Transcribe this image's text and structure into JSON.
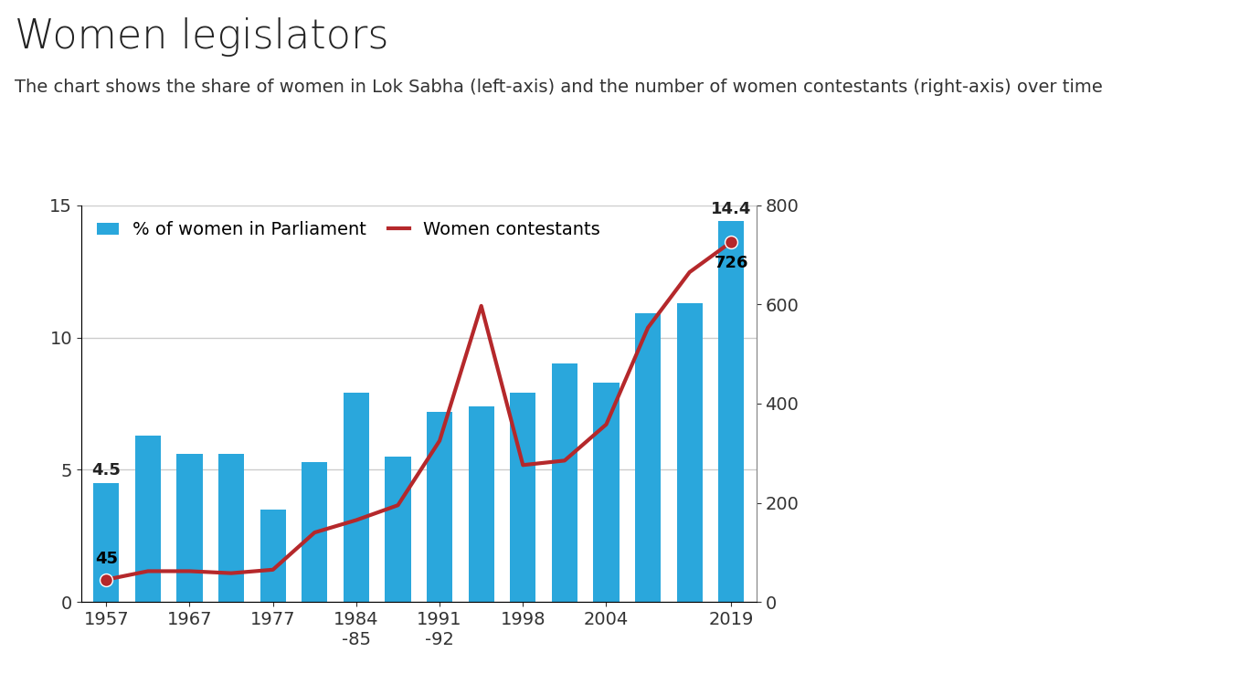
{
  "chart_data": {
    "type": "bar",
    "title": "Women legislators",
    "subtitle": "The chart shows the share of women in Lok Sabha (left-axis) and the number of women contestants (right-axis) over time",
    "categories": [
      "1957",
      null,
      "1967",
      null,
      "1977",
      null,
      "1984\n-85",
      null,
      "1991\n-92",
      null,
      "1998",
      null,
      "2004",
      null,
      null,
      "2019"
    ],
    "series": [
      {
        "name": "% of women in Parliament",
        "type": "bar",
        "color": "#2aa7dc",
        "values": [
          4.5,
          6.3,
          5.6,
          5.6,
          3.5,
          5.3,
          7.9,
          5.5,
          7.2,
          7.4,
          7.9,
          9.0,
          8.3,
          10.9,
          11.3,
          14.4
        ],
        "value_labels": [
          "4.5",
          null,
          null,
          null,
          null,
          null,
          null,
          null,
          null,
          null,
          null,
          null,
          null,
          null,
          null,
          "14.4"
        ]
      },
      {
        "name": "Women contestants",
        "type": "line",
        "axis": "y2",
        "color": "#b5282b",
        "marker": "o",
        "values": [
          45,
          62,
          62,
          58,
          65,
          140,
          165,
          195,
          325,
          597,
          276,
          285,
          358,
          553,
          665,
          726
        ],
        "value_labels": [
          "45",
          null,
          null,
          null,
          null,
          null,
          null,
          null,
          null,
          null,
          null,
          null,
          null,
          null,
          null,
          "726"
        ]
      }
    ],
    "ylim": [
      0,
      15
    ],
    "yticks": [
      0,
      5,
      10,
      15
    ],
    "y2lim": [
      0,
      800
    ],
    "y2ticks": [
      0,
      200,
      400,
      600,
      800
    ],
    "grid": true,
    "legend": "upper left"
  }
}
